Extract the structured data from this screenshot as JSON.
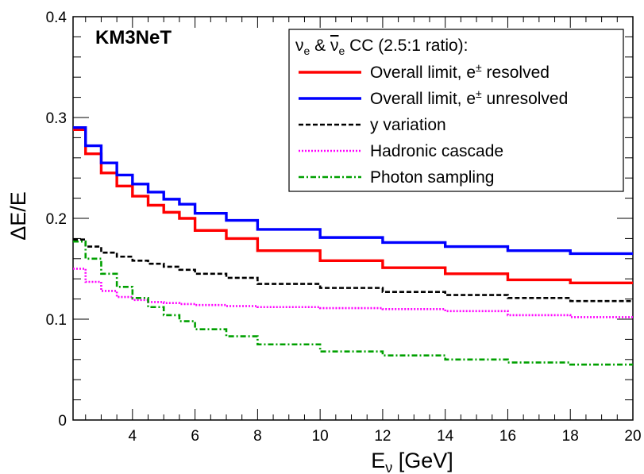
{
  "chart_data": {
    "type": "line",
    "title": "",
    "experiment_label": "KM3NeT",
    "xlabel": {
      "main": "E",
      "sub": "ν",
      "unit": "[GeV]"
    },
    "ylabel": "ΔE/E",
    "xlim": [
      2.1,
      20
    ],
    "ylim": [
      0,
      0.4
    ],
    "x_ticks": [
      4,
      6,
      8,
      10,
      12,
      14,
      16,
      18,
      20
    ],
    "y_ticks": [
      0,
      0.1,
      0.2,
      0.3,
      0.4
    ],
    "x_tick_labels": [
      "4",
      "6",
      "8",
      "10",
      "12",
      "14",
      "16",
      "18",
      "20"
    ],
    "y_tick_labels": [
      "0",
      "0.1",
      "0.2",
      "0.3",
      "0.4"
    ],
    "grid": false,
    "style": "step-histogram",
    "x": [
      2.5,
      3.0,
      3.5,
      4.0,
      4.5,
      5.0,
      5.5,
      6.0,
      7.0,
      8.0,
      10.0,
      12.0,
      14.0,
      16.0,
      18.0,
      20.0
    ],
    "legend": {
      "placement": "top-right",
      "header": {
        "nu": "ν",
        "sub": "e",
        "amp": " & ",
        "cc": " CC (2.5:1 ratio):"
      },
      "entries": [
        {
          "label_main": "Overall limit, e",
          "label_sup": "±",
          "label_tail": " resolved",
          "series_index": 0
        },
        {
          "label_main": "Overall limit, e",
          "label_sup": "±",
          "label_tail": " unresolved",
          "series_index": 1
        },
        {
          "label_main": "y variation",
          "label_sup": "",
          "label_tail": "",
          "series_index": 2
        },
        {
          "label_main": "Hadronic cascade",
          "label_sup": "",
          "label_tail": "",
          "series_index": 3
        },
        {
          "label_main": "Photon sampling",
          "label_sup": "",
          "label_tail": "",
          "series_index": 4
        }
      ]
    },
    "series": [
      {
        "name": "Overall limit, e± resolved",
        "color": "#ff0000",
        "dash": "solid",
        "values": [
          0.288,
          0.264,
          0.245,
          0.232,
          0.222,
          0.213,
          0.206,
          0.2,
          0.188,
          0.18,
          0.168,
          0.158,
          0.151,
          0.145,
          0.139,
          0.136
        ]
      },
      {
        "name": "Overall limit, e± unresolved",
        "color": "#0000ff",
        "dash": "solid",
        "values": [
          0.29,
          0.272,
          0.255,
          0.243,
          0.234,
          0.226,
          0.219,
          0.214,
          0.205,
          0.198,
          0.189,
          0.181,
          0.176,
          0.172,
          0.168,
          0.165
        ]
      },
      {
        "name": "y variation",
        "color": "#000000",
        "dash": "dashed",
        "values": [
          0.179,
          0.172,
          0.166,
          0.162,
          0.158,
          0.155,
          0.152,
          0.149,
          0.145,
          0.141,
          0.135,
          0.131,
          0.127,
          0.124,
          0.121,
          0.118
        ]
      },
      {
        "name": "Hadronic cascade",
        "color": "#ff00ff",
        "dash": "dotted",
        "values": [
          0.15,
          0.137,
          0.128,
          0.122,
          0.119,
          0.117,
          0.116,
          0.115,
          0.114,
          0.113,
          0.112,
          0.111,
          0.11,
          0.108,
          0.104,
          0.102
        ]
      },
      {
        "name": "Photon sampling",
        "color": "#00a000",
        "dash": "dashdot",
        "values": [
          0.177,
          0.16,
          0.145,
          0.132,
          0.121,
          0.112,
          0.104,
          0.098,
          0.09,
          0.083,
          0.075,
          0.068,
          0.064,
          0.06,
          0.057,
          0.055
        ]
      }
    ]
  }
}
